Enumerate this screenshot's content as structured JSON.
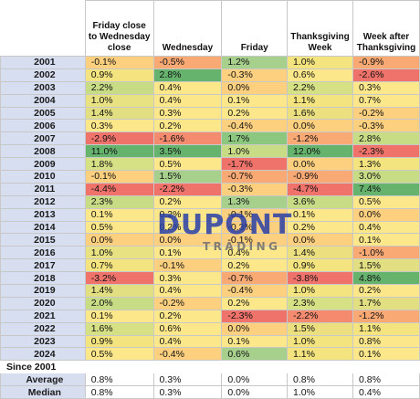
{
  "headers": [
    "Friday close to Wednesday close",
    "Wednesday",
    "Friday",
    "Thanksgiving Week",
    "Week after Thanksgiving"
  ],
  "rows": [
    {
      "year": "2001",
      "values": [
        "-0.1%",
        "-0.5%",
        "1.2%",
        "1.0%",
        "-0.9%"
      ],
      "colors": [
        "#fcd07f",
        "#f9a974",
        "#a8d08d",
        "#f3e47f",
        "#f9a974"
      ]
    },
    {
      "year": "2002",
      "values": [
        "0.9%",
        "2.8%",
        "-0.3%",
        "0.6%",
        "-2.6%"
      ],
      "colors": [
        "#f3e47f",
        "#66b36e",
        "#fcd07f",
        "#fce88a",
        "#f0736b"
      ]
    },
    {
      "year": "2003",
      "values": [
        "2.2%",
        "0.4%",
        "0.0%",
        "2.2%",
        "0.3%"
      ],
      "colors": [
        "#c8dc86",
        "#fce88a",
        "#fcd07f",
        "#d6e084",
        "#fce88a"
      ]
    },
    {
      "year": "2004",
      "values": [
        "1.0%",
        "0.4%",
        "0.1%",
        "1.1%",
        "0.7%"
      ],
      "colors": [
        "#e9e282",
        "#fce88a",
        "#fce88a",
        "#f3e47f",
        "#fce88a"
      ]
    },
    {
      "year": "2005",
      "values": [
        "1.4%",
        "0.3%",
        "0.2%",
        "1.6%",
        "-0.2%"
      ],
      "colors": [
        "#e1df82",
        "#fce88a",
        "#fce88a",
        "#ecdf80",
        "#fcd07f"
      ]
    },
    {
      "year": "2006",
      "values": [
        "0.3%",
        "0.2%",
        "-0.4%",
        "0.0%",
        "-0.3%"
      ],
      "colors": [
        "#fce88a",
        "#fce88a",
        "#fcd07f",
        "#fcd07f",
        "#fcd07f"
      ]
    },
    {
      "year": "2007",
      "values": [
        "-2.9%",
        "-1.6%",
        "1.7%",
        "-1.2%",
        "2.8%"
      ],
      "colors": [
        "#f0736b",
        "#f48a6e",
        "#8cc77f",
        "#f9a974",
        "#c8dc86"
      ]
    },
    {
      "year": "2008",
      "values": [
        "11.0%",
        "3.5%",
        "1.0%",
        "12.0%",
        "-2.3%"
      ],
      "colors": [
        "#66b36e",
        "#66b36e",
        "#c8dc86",
        "#66b36e",
        "#f0736b"
      ]
    },
    {
      "year": "2009",
      "values": [
        "1.8%",
        "0.5%",
        "-1.7%",
        "0.0%",
        "1.3%"
      ],
      "colors": [
        "#d6e084",
        "#fce88a",
        "#f0736b",
        "#fcd07f",
        "#f3e47f"
      ]
    },
    {
      "year": "2010",
      "values": [
        "-0.1%",
        "1.5%",
        "-0.7%",
        "-0.9%",
        "3.0%"
      ],
      "colors": [
        "#fcd07f",
        "#a8d08d",
        "#f9a974",
        "#f9a974",
        "#c8dc86"
      ]
    },
    {
      "year": "2011",
      "values": [
        "-4.4%",
        "-2.2%",
        "-0.3%",
        "-4.7%",
        "7.4%"
      ],
      "colors": [
        "#f0736b",
        "#f0736b",
        "#fcd07f",
        "#f0736b",
        "#66b36e"
      ]
    },
    {
      "year": "2012",
      "values": [
        "2.3%",
        "0.2%",
        "1.3%",
        "3.6%",
        "0.5%"
      ],
      "colors": [
        "#c8dc86",
        "#fce88a",
        "#a8d08d",
        "#c8dc86",
        "#fce88a"
      ]
    },
    {
      "year": "2013",
      "values": [
        "0.1%",
        "0.2%",
        "-0.1%",
        "0.1%",
        "0.0%"
      ],
      "colors": [
        "#fce88a",
        "#fce88a",
        "#fcd07f",
        "#fce88a",
        "#fcd07f"
      ]
    },
    {
      "year": "2014",
      "values": [
        "0.5%",
        "0.2%",
        "-0.3%",
        "0.2%",
        "0.4%"
      ],
      "colors": [
        "#fce88a",
        "#fce88a",
        "#fcd07f",
        "#fce88a",
        "#fce88a"
      ]
    },
    {
      "year": "2015",
      "values": [
        "0.0%",
        "0.0%",
        "-0.1%",
        "0.0%",
        "0.1%"
      ],
      "colors": [
        "#fcd07f",
        "#fcd07f",
        "#fcd07f",
        "#fcd07f",
        "#fce88a"
      ]
    },
    {
      "year": "2016",
      "values": [
        "1.0%",
        "0.1%",
        "0.4%",
        "1.4%",
        "-1.0%"
      ],
      "colors": [
        "#e9e282",
        "#fce88a",
        "#fce88a",
        "#ecdf80",
        "#f9a974"
      ]
    },
    {
      "year": "2017",
      "values": [
        "0.7%",
        "-0.1%",
        "0.2%",
        "0.9%",
        "1.5%"
      ],
      "colors": [
        "#f3e47f",
        "#fcd07f",
        "#fce88a",
        "#f3e47f",
        "#e1df82"
      ]
    },
    {
      "year": "2018",
      "values": [
        "-3.2%",
        "0.3%",
        "-0.7%",
        "-3.8%",
        "4.8%"
      ],
      "colors": [
        "#f0736b",
        "#fce88a",
        "#f9a974",
        "#f0736b",
        "#66b36e"
      ]
    },
    {
      "year": "2019",
      "values": [
        "1.4%",
        "0.4%",
        "-0.4%",
        "1.0%",
        "0.2%"
      ],
      "colors": [
        "#e1df82",
        "#fce88a",
        "#fcd07f",
        "#f3e47f",
        "#fce88a"
      ]
    },
    {
      "year": "2020",
      "values": [
        "2.0%",
        "-0.2%",
        "0.2%",
        "2.3%",
        "1.7%"
      ],
      "colors": [
        "#c8dc86",
        "#fcd07f",
        "#fce88a",
        "#d6e084",
        "#e1df82"
      ]
    },
    {
      "year": "2021",
      "values": [
        "0.1%",
        "0.2%",
        "-2.3%",
        "-2.2%",
        "-1.2%"
      ],
      "colors": [
        "#fce88a",
        "#fce88a",
        "#f0736b",
        "#f48a6e",
        "#f9a974"
      ]
    },
    {
      "year": "2022",
      "values": [
        "1.6%",
        "0.6%",
        "0.0%",
        "1.5%",
        "1.1%"
      ],
      "colors": [
        "#d6e084",
        "#fce88a",
        "#fcd07f",
        "#ecdf80",
        "#f3e47f"
      ]
    },
    {
      "year": "2023",
      "values": [
        "0.9%",
        "0.4%",
        "0.1%",
        "1.0%",
        "0.8%"
      ],
      "colors": [
        "#f3e47f",
        "#fce88a",
        "#fce88a",
        "#f3e47f",
        "#fce88a"
      ]
    },
    {
      "year": "2024",
      "values": [
        "0.5%",
        "-0.4%",
        "0.6%",
        "1.1%",
        "0.1%"
      ],
      "colors": [
        "#fce88a",
        "#fcd07f",
        "#a8d08d",
        "#f3e47f",
        "#fce88a"
      ]
    }
  ],
  "since_label": "Since 2001",
  "summary": [
    {
      "label": "Average",
      "values": [
        "0.8%",
        "0.3%",
        "0.0%",
        "0.8%",
        "0.8%"
      ]
    },
    {
      "label": "Median",
      "values": [
        "0.8%",
        "0.3%",
        "0.0%",
        "1.0%",
        "0.4%"
      ]
    }
  ],
  "watermark": {
    "line1": "DUPONT",
    "line2": "TRADING",
    "color": "#2a3fa8",
    "color2": "#6e6e6e"
  }
}
